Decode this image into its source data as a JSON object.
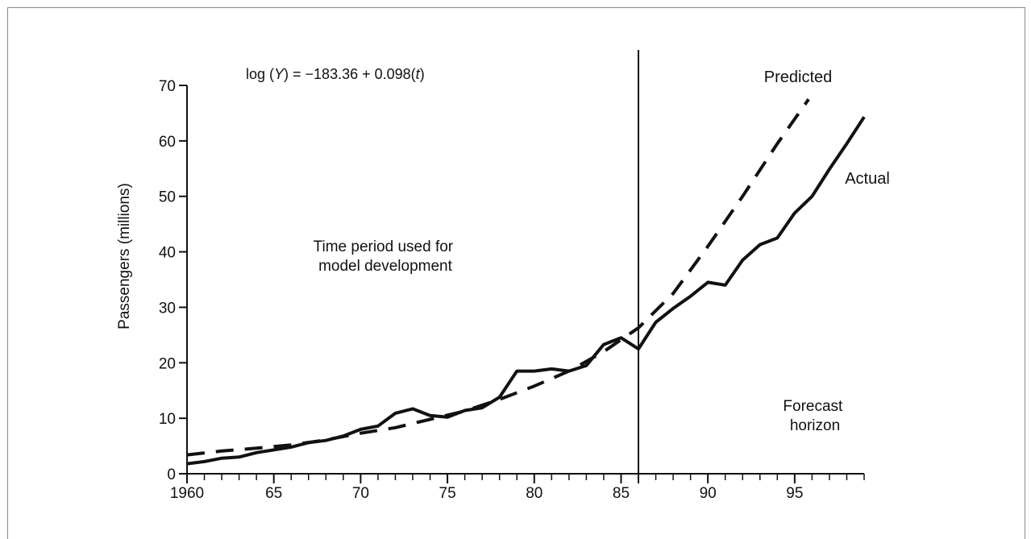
{
  "chart_data": {
    "type": "line",
    "ylabel": "Passengers (millions)",
    "xlabel": "",
    "ylim": [
      0,
      70
    ],
    "xlim": [
      1960,
      1999
    ],
    "x_ticks": [
      {
        "value": 1960,
        "label": "1960"
      },
      {
        "value": 1965,
        "label": "65"
      },
      {
        "value": 1970,
        "label": "70"
      },
      {
        "value": 1975,
        "label": "75"
      },
      {
        "value": 1980,
        "label": "80"
      },
      {
        "value": 1985,
        "label": "85"
      },
      {
        "value": 1990,
        "label": "90"
      },
      {
        "value": 1995,
        "label": "95"
      }
    ],
    "y_ticks": [
      0,
      10,
      20,
      30,
      40,
      50,
      60,
      70
    ],
    "grid": false,
    "equation": {
      "prefix": "log (",
      "var_y": "Y",
      "middle": ") = −183.36 + 0.098(",
      "var_t": "t",
      "suffix": ")"
    },
    "region_left_label": [
      "Time period used for",
      "model development"
    ],
    "region_right_label": [
      "Forecast",
      "horizon"
    ],
    "divider_x": 1986,
    "series": [
      {
        "name": "Actual",
        "style": "solid",
        "color": "#111111",
        "x": [
          1960,
          1961,
          1962,
          1963,
          1964,
          1965,
          1966,
          1967,
          1968,
          1969,
          1970,
          1971,
          1972,
          1973,
          1974,
          1975,
          1976,
          1977,
          1978,
          1979,
          1980,
          1981,
          1982,
          1983,
          1984,
          1985,
          1986,
          1987,
          1988,
          1989,
          1990,
          1991,
          1992,
          1993,
          1994,
          1995,
          1996,
          1997,
          1998,
          1999
        ],
        "values": [
          1.8,
          2.2,
          2.8,
          3.0,
          3.8,
          4.3,
          4.8,
          5.6,
          6.0,
          6.8,
          8.0,
          8.6,
          10.9,
          11.7,
          10.5,
          10.2,
          11.4,
          11.9,
          13.8,
          18.5,
          18.5,
          18.9,
          18.5,
          19.5,
          23.3,
          24.5,
          22.5,
          27.3,
          29.8,
          32.0,
          34.5,
          34.0,
          38.5,
          41.3,
          42.5,
          47.0,
          50.0,
          54.9,
          59.5,
          64.3
        ]
      },
      {
        "name": "Predicted",
        "style": "dashed",
        "color": "#111111",
        "x": [
          1960,
          1962,
          1964,
          1966,
          1968,
          1970,
          1972,
          1974,
          1976,
          1978,
          1980,
          1982,
          1984,
          1986,
          1988,
          1990,
          1992,
          1994,
          1995.8
        ],
        "values": [
          3.4,
          4.1,
          4.6,
          5.2,
          6.1,
          7.3,
          8.3,
          9.8,
          11.3,
          13.4,
          15.8,
          18.5,
          22.0,
          26.3,
          32.5,
          41.0,
          50.0,
          59.5,
          67.5
        ]
      }
    ]
  }
}
